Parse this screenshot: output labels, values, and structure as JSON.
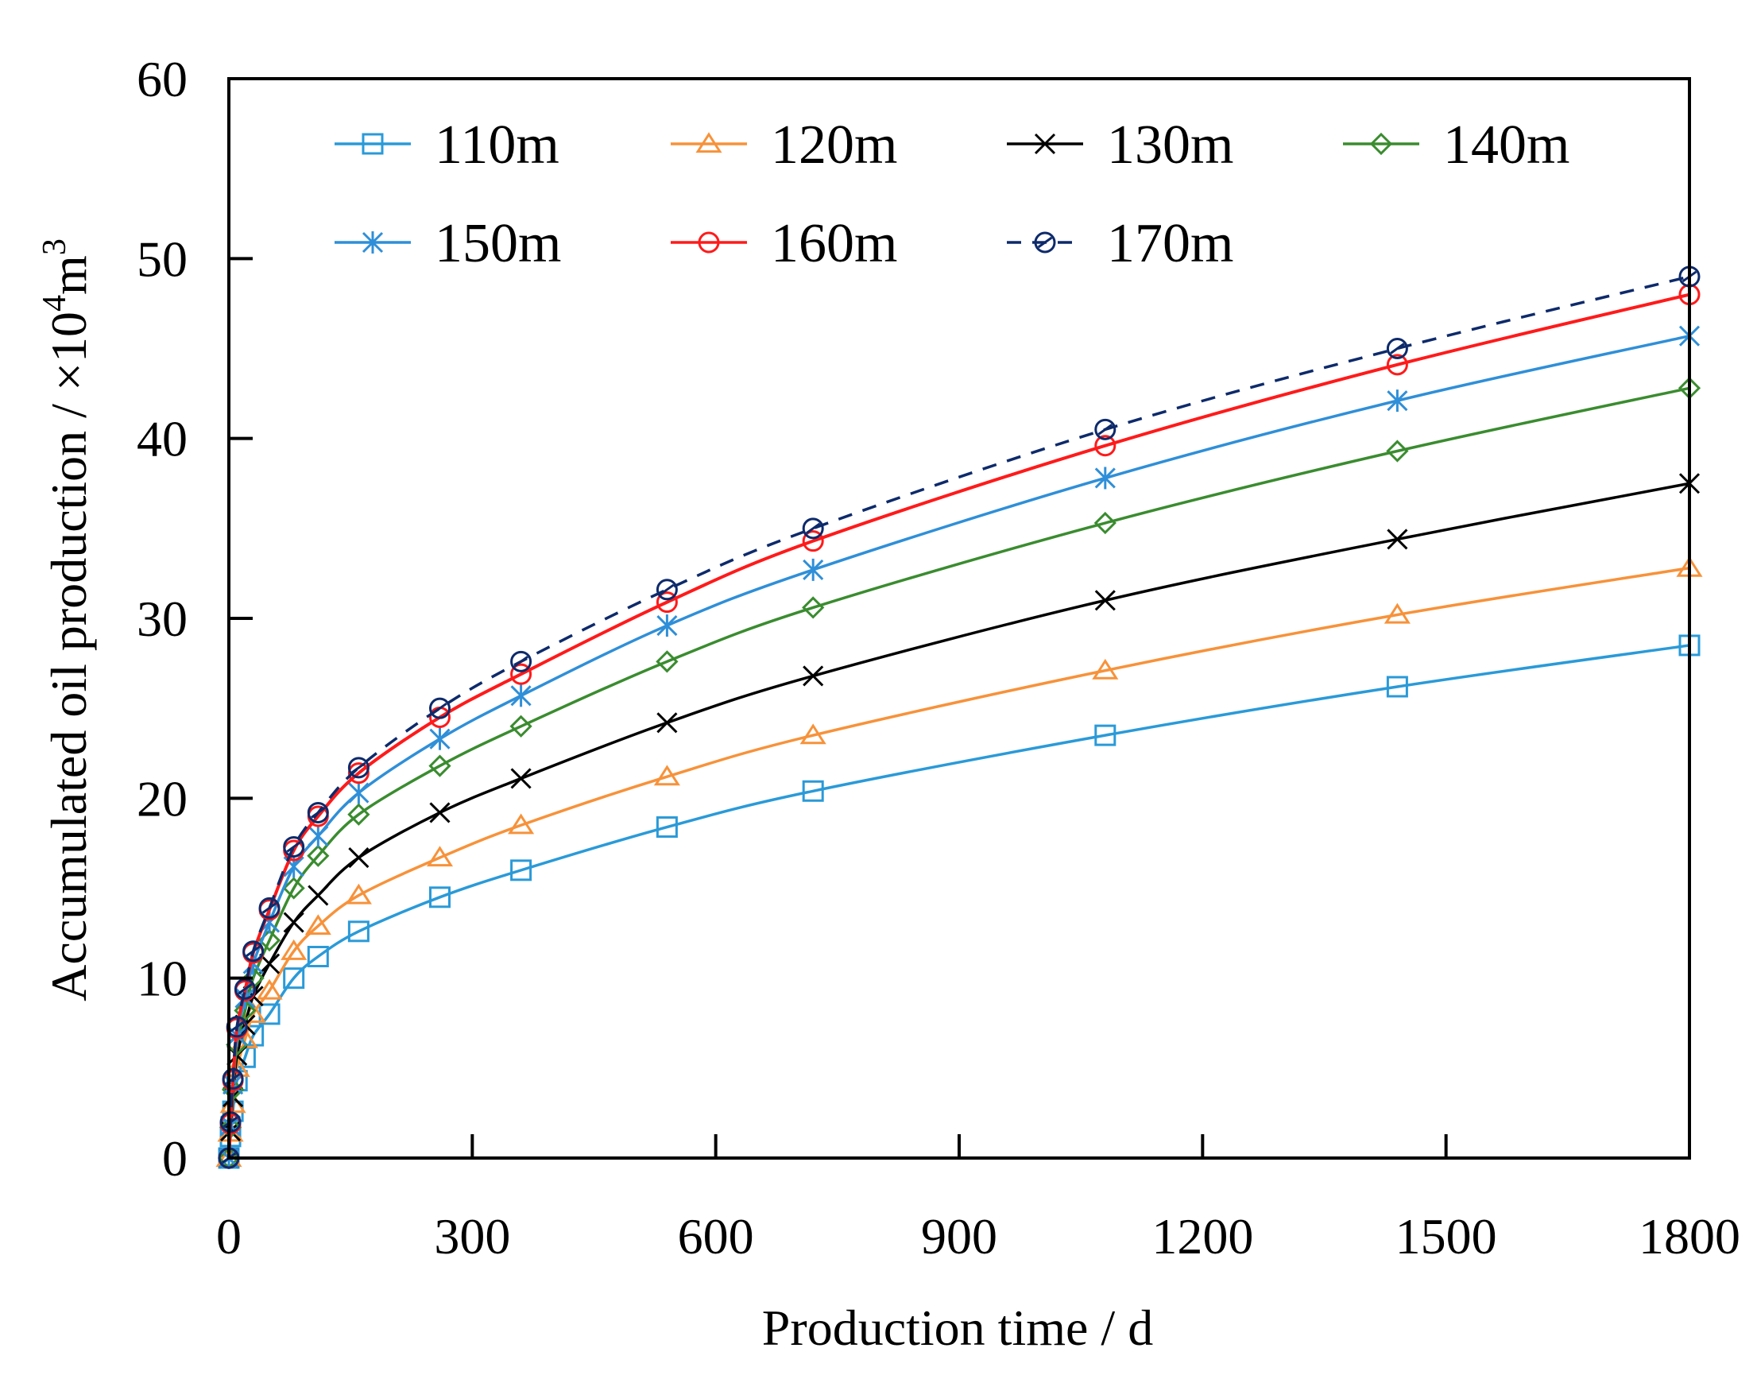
{
  "chart_data": {
    "type": "line",
    "title": "",
    "xlabel": "Production time / d",
    "ylabel_main": "Accumulated oil production / ×10",
    "ylabel_sup": "4",
    "ylabel_tail": "m",
    "ylabel_sup2": "3",
    "xlim": [
      0,
      1800
    ],
    "ylim": [
      0,
      60
    ],
    "xticks": [
      0,
      300,
      600,
      900,
      1200,
      1500,
      1800
    ],
    "yticks": [
      0,
      10,
      20,
      30,
      40,
      50,
      60
    ],
    "grid": false,
    "legend_position": "top",
    "x": [
      0,
      2,
      5,
      10,
      20,
      30,
      50,
      80,
      110,
      160,
      260,
      360,
      540,
      720,
      1080,
      1440,
      1800
    ],
    "series": [
      {
        "name": "110m",
        "color": "#2a9ad8",
        "marker": "square",
        "dash": false,
        "values": [
          0,
          1.2,
          2.6,
          4.3,
          5.6,
          6.8,
          8.0,
          10.0,
          11.2,
          12.6,
          14.5,
          16.0,
          18.4,
          20.4,
          23.5,
          26.2,
          28.5
        ]
      },
      {
        "name": "120m",
        "color": "#f7923a",
        "marker": "triangle",
        "dash": false,
        "values": [
          0,
          1.4,
          3.0,
          5.0,
          6.6,
          8.0,
          9.3,
          11.5,
          12.9,
          14.6,
          16.7,
          18.5,
          21.2,
          23.5,
          27.1,
          30.2,
          32.8
        ]
      },
      {
        "name": "130m",
        "color": "#000000",
        "marker": "x",
        "dash": false,
        "values": [
          0,
          1.5,
          3.4,
          5.7,
          7.4,
          9.0,
          10.8,
          13.1,
          14.6,
          16.7,
          19.2,
          21.1,
          24.2,
          26.8,
          31.0,
          34.4,
          37.5
        ]
      },
      {
        "name": "140m",
        "color": "#3a8c2f",
        "marker": "diamond",
        "dash": false,
        "values": [
          0,
          1.7,
          3.8,
          6.3,
          8.2,
          10.0,
          12.1,
          15.0,
          16.8,
          19.1,
          21.8,
          24.0,
          27.6,
          30.6,
          35.3,
          39.3,
          42.8
        ]
      },
      {
        "name": "150m",
        "color": "#2f8fd8",
        "marker": "star",
        "dash": false,
        "values": [
          0,
          1.8,
          4.1,
          6.8,
          8.9,
          10.8,
          13.1,
          16.2,
          17.9,
          20.3,
          23.3,
          25.7,
          29.6,
          32.7,
          37.8,
          42.1,
          45.7
        ]
      },
      {
        "name": "160m",
        "color": "#ff1a1a",
        "marker": "circle",
        "dash": false,
        "values": [
          0,
          1.9,
          4.3,
          7.2,
          9.3,
          11.4,
          13.8,
          17.1,
          19.0,
          21.4,
          24.5,
          26.9,
          30.9,
          34.3,
          39.6,
          44.1,
          48.0
        ]
      },
      {
        "name": "170m",
        "color": "#0d2a6b",
        "marker": "circle-slash",
        "dash": true,
        "values": [
          0,
          2.0,
          4.4,
          7.3,
          9.4,
          11.5,
          13.9,
          17.3,
          19.2,
          21.7,
          25.0,
          27.6,
          31.6,
          35.0,
          40.5,
          45.0,
          49.0
        ]
      }
    ]
  }
}
